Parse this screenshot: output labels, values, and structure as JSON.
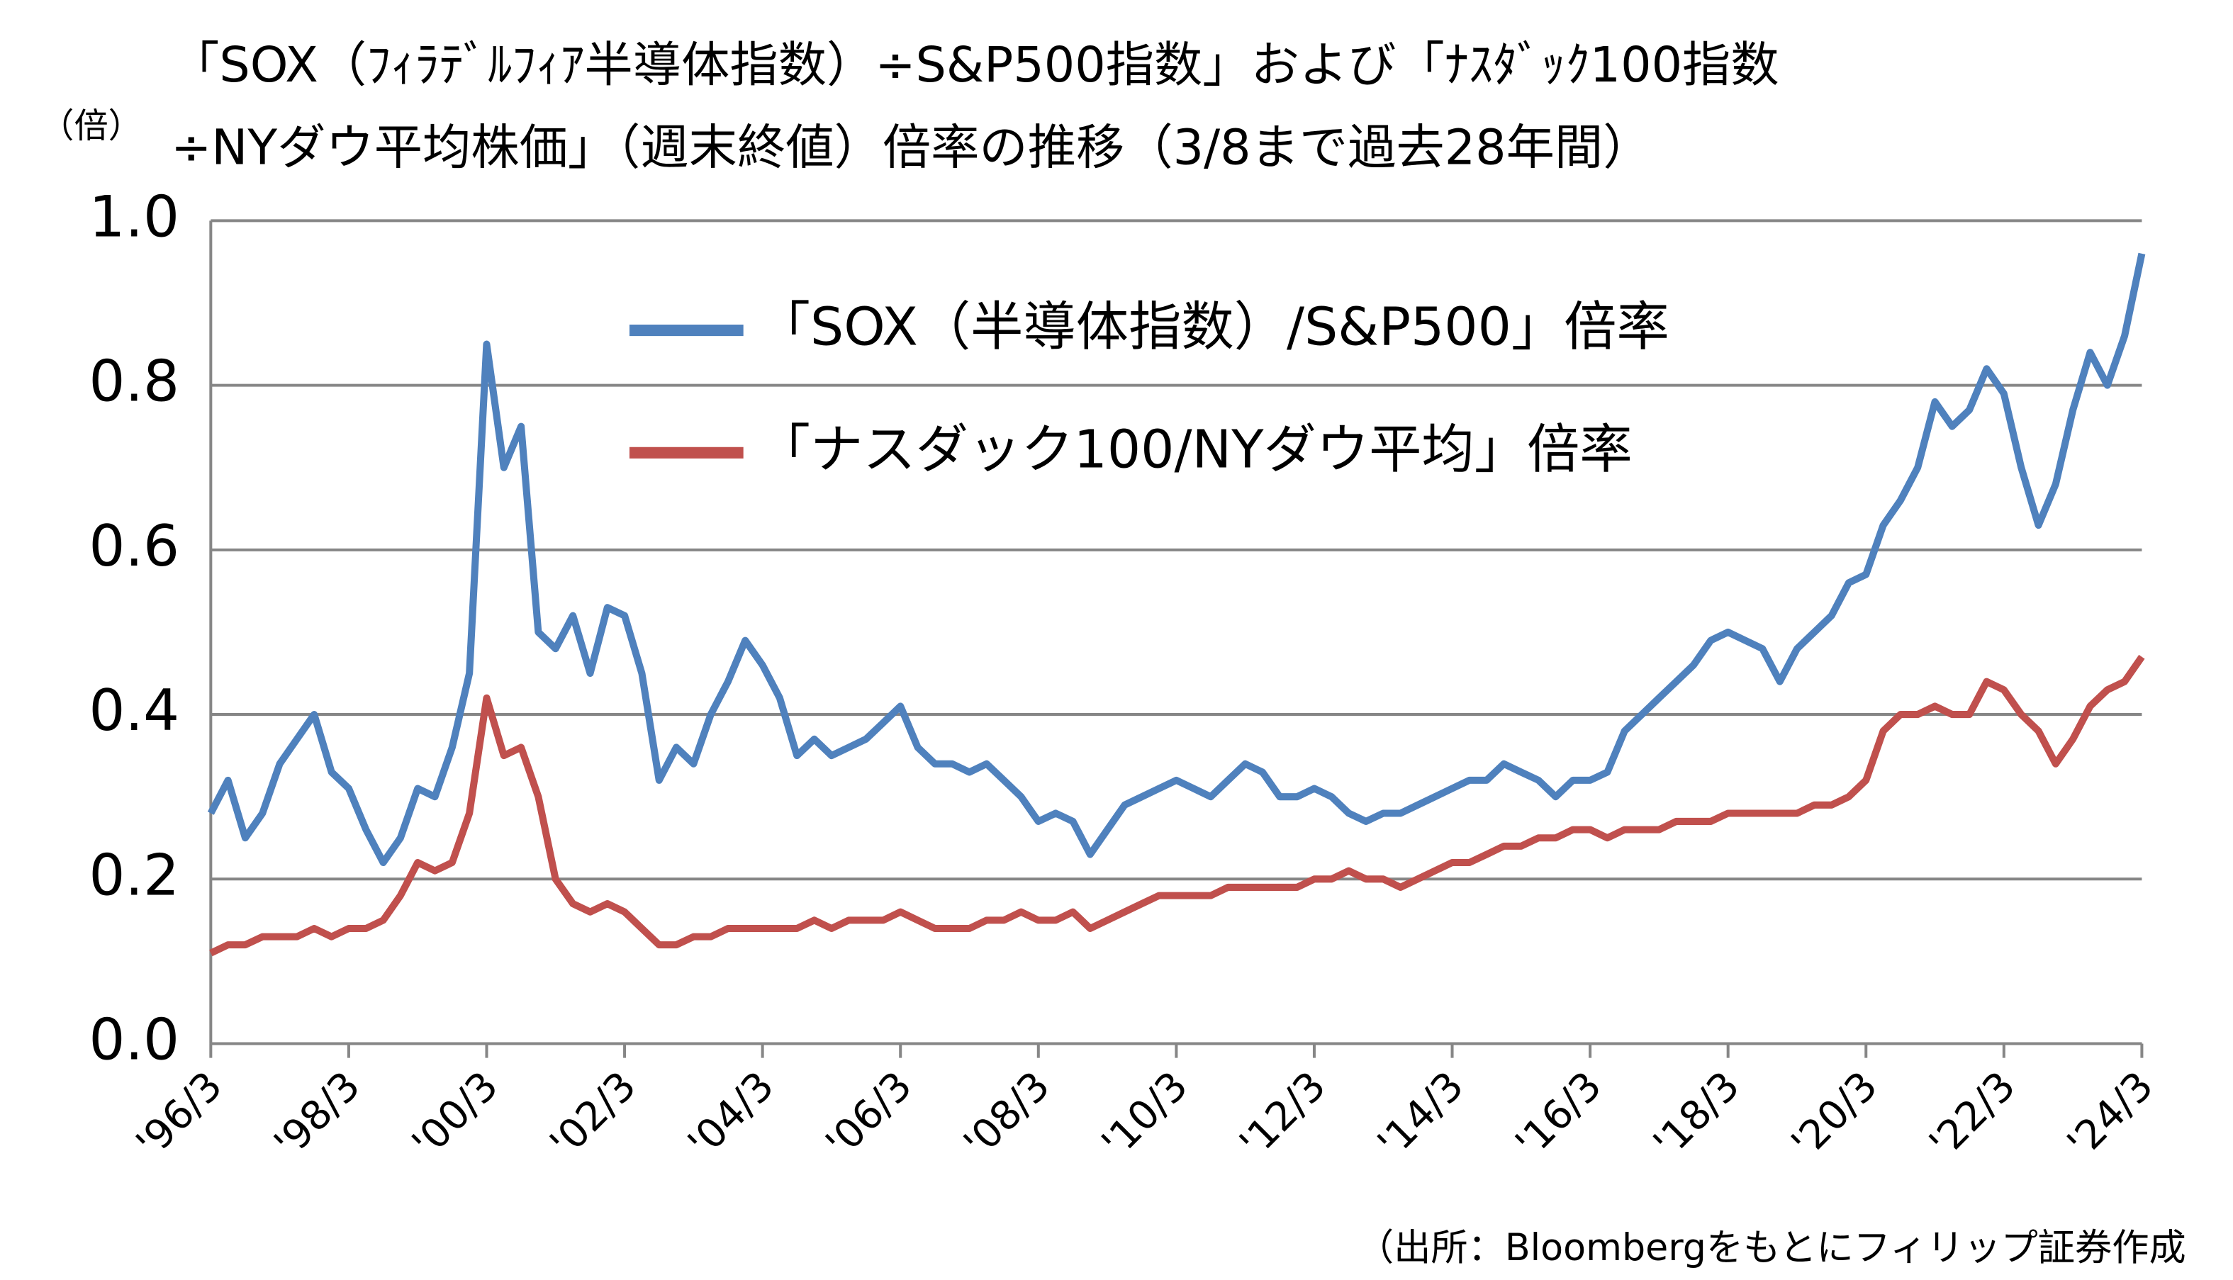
{
  "chart_data": {
    "type": "line",
    "title": [
      "「SOX（ﾌｨﾗﾃﾞﾙﾌｨｱ半導体指数）÷S&P500指数」および「ﾅｽﾀﾞｯｸ100指数",
      "÷NYダウ平均株価」（週末終値）倍率の推移（3/8まで過去28年間）"
    ],
    "y_axis_label": "（倍）",
    "source": "（出所：Bloombergをもとにフィリップ証券作成",
    "categories": [
      "'96/3",
      null,
      null,
      null,
      null,
      null,
      null,
      null,
      "'98/3",
      null,
      null,
      null,
      null,
      null,
      null,
      null,
      "'00/3",
      null,
      null,
      null,
      null,
      null,
      null,
      null,
      "'02/3",
      null,
      null,
      null,
      null,
      null,
      null,
      null,
      "'04/3",
      null,
      null,
      null,
      null,
      null,
      null,
      null,
      "'06/3",
      null,
      null,
      null,
      null,
      null,
      null,
      null,
      "'08/3",
      null,
      null,
      null,
      null,
      null,
      null,
      null,
      "'10/3",
      null,
      null,
      null,
      null,
      null,
      null,
      null,
      "'12/3",
      null,
      null,
      null,
      null,
      null,
      null,
      null,
      "'14/3",
      null,
      null,
      null,
      null,
      null,
      null,
      null,
      "'16/3",
      null,
      null,
      null,
      null,
      null,
      null,
      null,
      "'18/3",
      null,
      null,
      null,
      null,
      null,
      null,
      null,
      "'20/3",
      null,
      null,
      null,
      null,
      null,
      null,
      null,
      "'22/3",
      null,
      null,
      null,
      null,
      null,
      null,
      null,
      "'24/3"
    ],
    "series": [
      {
        "name": "「SOX（半導体指数）/S&P500」倍率",
        "color": "#4f81bd",
        "values": [
          0.28,
          0.32,
          0.25,
          0.28,
          0.34,
          0.37,
          0.4,
          0.33,
          0.31,
          0.26,
          0.22,
          0.25,
          0.31,
          0.3,
          0.36,
          0.45,
          0.85,
          0.7,
          0.75,
          0.5,
          0.48,
          0.52,
          0.45,
          0.53,
          0.52,
          0.45,
          0.32,
          0.36,
          0.34,
          0.4,
          0.44,
          0.49,
          0.46,
          0.42,
          0.35,
          0.37,
          0.35,
          0.36,
          0.37,
          0.39,
          0.41,
          0.36,
          0.34,
          0.34,
          0.33,
          0.34,
          0.32,
          0.3,
          0.27,
          0.28,
          0.27,
          0.23,
          0.26,
          0.29,
          0.3,
          0.31,
          0.32,
          0.31,
          0.3,
          0.32,
          0.34,
          0.33,
          0.3,
          0.3,
          0.31,
          0.3,
          0.28,
          0.27,
          0.28,
          0.28,
          0.29,
          0.3,
          0.31,
          0.32,
          0.32,
          0.34,
          0.33,
          0.32,
          0.3,
          0.32,
          0.32,
          0.33,
          0.38,
          0.4,
          0.42,
          0.44,
          0.46,
          0.49,
          0.5,
          0.49,
          0.48,
          0.44,
          0.48,
          0.5,
          0.52,
          0.56,
          0.57,
          0.63,
          0.66,
          0.7,
          0.78,
          0.75,
          0.77,
          0.82,
          0.79,
          0.7,
          0.63,
          0.68,
          0.77,
          0.84,
          0.8,
          0.86,
          0.96
        ]
      },
      {
        "name": "「ナスダック100/NYダウ平均」倍率",
        "color": "#c0504d",
        "values": [
          0.11,
          0.12,
          0.12,
          0.13,
          0.13,
          0.13,
          0.14,
          0.13,
          0.14,
          0.14,
          0.15,
          0.18,
          0.22,
          0.21,
          0.22,
          0.28,
          0.42,
          0.35,
          0.36,
          0.3,
          0.2,
          0.17,
          0.16,
          0.17,
          0.16,
          0.14,
          0.12,
          0.12,
          0.13,
          0.13,
          0.14,
          0.14,
          0.14,
          0.14,
          0.14,
          0.15,
          0.14,
          0.15,
          0.15,
          0.15,
          0.16,
          0.15,
          0.14,
          0.14,
          0.14,
          0.15,
          0.15,
          0.16,
          0.15,
          0.15,
          0.16,
          0.14,
          0.15,
          0.16,
          0.17,
          0.18,
          0.18,
          0.18,
          0.18,
          0.19,
          0.19,
          0.19,
          0.19,
          0.19,
          0.2,
          0.2,
          0.21,
          0.2,
          0.2,
          0.19,
          0.2,
          0.21,
          0.22,
          0.22,
          0.23,
          0.24,
          0.24,
          0.25,
          0.25,
          0.26,
          0.26,
          0.25,
          0.26,
          0.26,
          0.26,
          0.27,
          0.27,
          0.27,
          0.28,
          0.28,
          0.28,
          0.28,
          0.28,
          0.29,
          0.29,
          0.3,
          0.32,
          0.38,
          0.4,
          0.4,
          0.41,
          0.4,
          0.4,
          0.44,
          0.43,
          0.4,
          0.38,
          0.34,
          0.37,
          0.41,
          0.43,
          0.44,
          0.47
        ]
      }
    ],
    "ylim": [
      0,
      1
    ],
    "yticks": [
      {
        "value": 0,
        "label": "0.0"
      },
      {
        "value": 0.2,
        "label": "0.2"
      },
      {
        "value": 0.4,
        "label": "0.4"
      },
      {
        "value": 0.6,
        "label": "0.6"
      },
      {
        "value": 0.8,
        "label": "0.8"
      },
      {
        "value": 1,
        "label": "1.0"
      }
    ],
    "grid": true,
    "legend": "top"
  }
}
